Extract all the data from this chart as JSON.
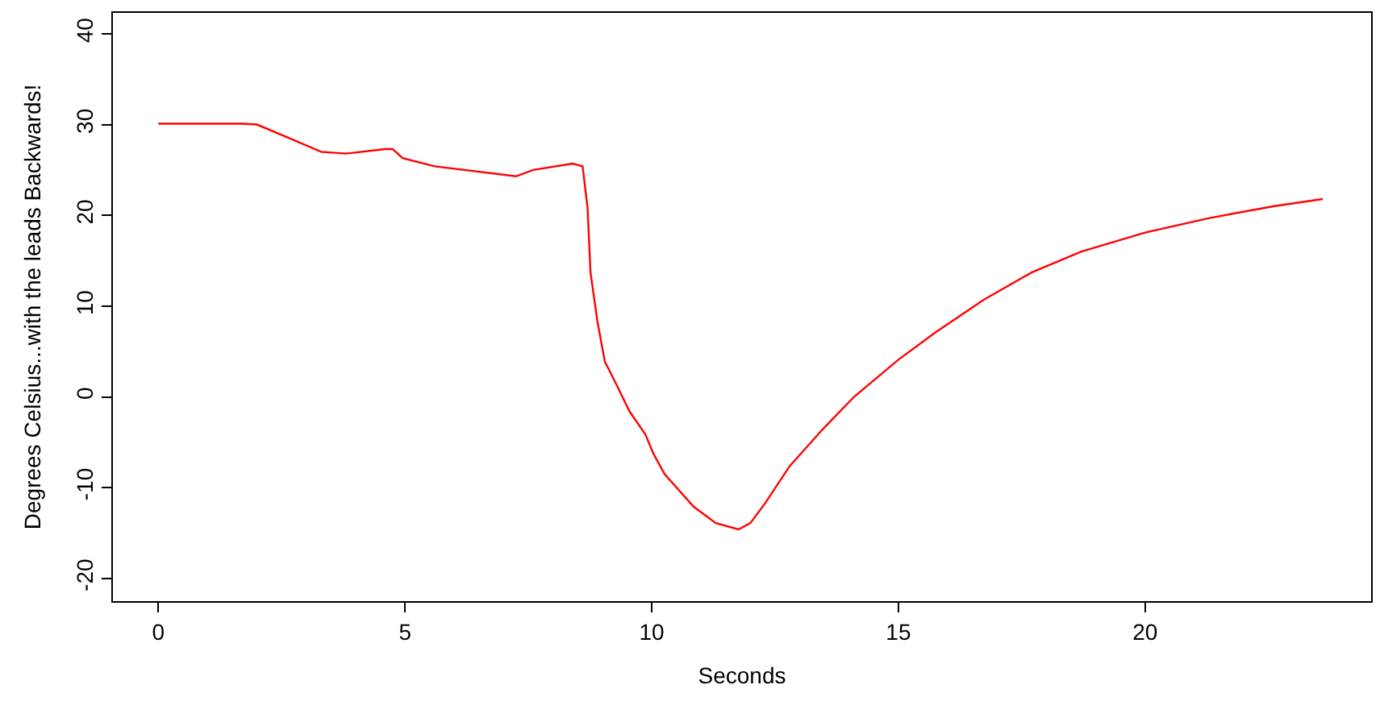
{
  "chart_data": {
    "type": "line",
    "xlabel": "Seconds",
    "ylabel": "Degrees Celsius...with the leads Backwards!",
    "x": [
      0,
      1.7,
      2.0,
      2.7,
      3.3,
      3.8,
      4.6,
      4.75,
      4.95,
      5.6,
      7.25,
      7.6,
      8.4,
      8.6,
      8.7,
      8.76,
      8.9,
      9.05,
      9.3,
      9.55,
      9.87,
      10.03,
      10.26,
      10.85,
      11.3,
      11.76,
      12.0,
      12.3,
      12.8,
      13.46,
      14.1,
      15.0,
      15.75,
      16.73,
      17.7,
      18.7,
      20.0,
      21.3,
      22.6,
      23.6
    ],
    "series": [
      {
        "color": "#ff0000",
        "values": [
          30.1,
          30.1,
          30.0,
          28.4,
          27.0,
          26.8,
          27.3,
          27.3,
          26.3,
          25.4,
          24.3,
          25.0,
          25.7,
          25.4,
          20.8,
          13.7,
          8.3,
          3.9,
          1.2,
          -1.6,
          -4.1,
          -6.2,
          -8.5,
          -12.1,
          -13.9,
          -14.6,
          -13.9,
          -11.7,
          -7.6,
          -3.6,
          0,
          4.1,
          7.1,
          10.7,
          13.7,
          16.0,
          18.1,
          19.7,
          21.0,
          21.8
        ]
      }
    ],
    "xlim": [
      -0.92,
      24.58
    ],
    "ylim": [
      -22.5,
      42.3
    ],
    "xticks": [
      0,
      5,
      10,
      15,
      20
    ],
    "yticks": [
      -20,
      -10,
      0,
      10,
      20,
      30,
      40
    ],
    "marker": "none",
    "line_style": "solid"
  }
}
